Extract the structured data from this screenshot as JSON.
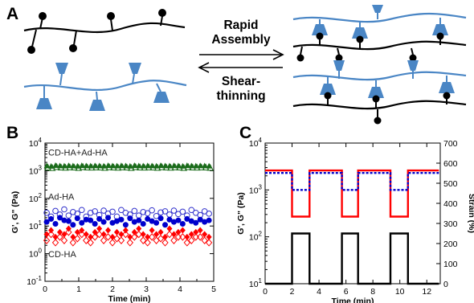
{
  "panel_a": {
    "letter": "A",
    "forward_label_line1": "Rapid",
    "forward_label_line2": "Assembly",
    "reverse_label_line1": "Shear-",
    "reverse_label_line2": "thinning",
    "colors": {
      "black_polymer": "#000000",
      "blue_polymer": "#4a86c5",
      "guest_group": "#000000",
      "host_group": "#4a86c5"
    }
  },
  "panel_b": {
    "letter": "B",
    "series_labels": [
      "CD-HA+Ad-HA",
      "Ad-HA",
      "CD-HA"
    ]
  },
  "panel_c": {
    "letter": "C"
  },
  "chart_data": [
    {
      "type": "scatter",
      "panel": "B",
      "xlabel": "Time (min)",
      "ylabel": "G', G\" (Pa)",
      "xlim": [
        0,
        5
      ],
      "ylim": [
        0.1,
        10000
      ],
      "yscale": "log",
      "x_ticks": [
        "0",
        "1",
        "2",
        "3",
        "4",
        "5"
      ],
      "y_ticks": [
        "10^-1",
        "10^0",
        "10^1",
        "10^2",
        "10^3",
        "10^4"
      ],
      "x": [
        0.05,
        0.18,
        0.31,
        0.44,
        0.57,
        0.7,
        0.83,
        0.96,
        1.09,
        1.22,
        1.35,
        1.48,
        1.61,
        1.74,
        1.87,
        2.0,
        2.13,
        2.26,
        2.39,
        2.52,
        2.65,
        2.78,
        2.91,
        3.04,
        3.17,
        3.3,
        3.43,
        3.56,
        3.69,
        3.82,
        3.95,
        4.08,
        4.21,
        4.34,
        4.47,
        4.6,
        4.73,
        4.86
      ],
      "series": [
        {
          "name": "CD-HA+Ad-HA",
          "role": "G' (filled)",
          "color": "#1a6b1a",
          "marker": "triangle-filled",
          "values": [
            1500,
            1450,
            1550,
            1500,
            1480,
            1520,
            1500,
            1460,
            1540,
            1500,
            1490,
            1510,
            1500,
            1470,
            1530,
            1500,
            1480,
            1520,
            1500,
            1460,
            1540,
            1500,
            1490,
            1510,
            1500,
            1470,
            1530,
            1500,
            1480,
            1520,
            1500,
            1460,
            1540,
            1500,
            1490,
            1510,
            1500,
            1470
          ]
        },
        {
          "name": "CD-HA+Ad-HA",
          "role": "G\" (open)",
          "color": "#1a6b1a",
          "marker": "triangle-open",
          "values": [
            1300,
            1250,
            1350,
            1300,
            1280,
            1320,
            1300,
            1260,
            1340,
            1300,
            1290,
            1310,
            1300,
            1270,
            1330,
            1300,
            1280,
            1320,
            1300,
            1260,
            1340,
            1300,
            1290,
            1310,
            1300,
            1270,
            1330,
            1300,
            1280,
            1320,
            1300,
            1260,
            1340,
            1300,
            1290,
            1310,
            1300,
            1270
          ]
        },
        {
          "name": "Ad-HA",
          "role": "G\" (open)",
          "color": "#3333cc",
          "marker": "circle-open",
          "values": [
            30,
            22,
            35,
            26,
            40,
            24,
            32,
            28,
            38,
            22,
            30,
            34,
            25,
            36,
            28,
            33,
            22,
            38,
            30,
            26,
            35,
            24,
            32,
            29,
            37,
            23,
            31,
            34,
            26,
            36,
            27,
            33,
            24,
            38,
            30,
            25,
            34,
            28
          ]
        },
        {
          "name": "Ad-HA",
          "role": "G' (filled)",
          "color": "#0000cc",
          "marker": "circle-filled",
          "values": [
            14,
            18,
            12,
            20,
            16,
            15,
            11,
            19,
            13,
            17,
            16,
            12,
            18,
            14,
            20,
            13,
            15,
            17,
            11,
            19,
            14,
            16,
            12,
            18,
            15,
            13,
            19,
            11,
            17,
            14,
            16,
            12,
            18,
            15,
            13,
            17,
            14,
            16
          ]
        },
        {
          "name": "CD-HA",
          "role": "G' (filled)",
          "color": "#ff0000",
          "marker": "diamond-filled",
          "values": [
            5,
            7,
            4,
            6,
            5,
            8,
            4,
            6,
            7,
            5,
            4,
            6,
            8,
            5,
            7,
            4,
            6,
            5,
            7,
            4,
            6,
            8,
            5,
            4,
            7,
            5,
            6,
            4,
            8,
            5,
            6,
            7,
            4,
            5,
            6,
            7,
            5,
            4
          ]
        },
        {
          "name": "CD-HA",
          "role": "G\" (open)",
          "color": "#ff0000",
          "marker": "diamond-open",
          "values": [
            3,
            5,
            2.5,
            4,
            3,
            6,
            2.5,
            3.5,
            5,
            3,
            2.5,
            4,
            5,
            3,
            4,
            2.5,
            3.5,
            3,
            5,
            2.5,
            4,
            5,
            3,
            2.5,
            4,
            3,
            3.5,
            2.5,
            5,
            3,
            4,
            4,
            2.5,
            3,
            4,
            4,
            3,
            2.5
          ]
        }
      ]
    },
    {
      "type": "line",
      "panel": "C",
      "xlabel": "Time (min)",
      "ylabel": "G', G\" (Pa)",
      "y2label": "Strain (%)",
      "xlim": [
        0,
        13
      ],
      "ylim": [
        10,
        10000
      ],
      "yscale": "log",
      "y2lim": [
        0,
        700
      ],
      "x_ticks": [
        "0",
        "2",
        "4",
        "6",
        "8",
        "10",
        "12"
      ],
      "y_ticks": [
        "10^1",
        "10^2",
        "10^3",
        "10^4"
      ],
      "y2_ticks": [
        "0",
        "100",
        "200",
        "300",
        "400",
        "500",
        "600",
        "700"
      ],
      "series": [
        {
          "name": "G'",
          "color": "#ff0000",
          "axis": "left",
          "x": [
            0,
            2.0,
            2.0,
            3.3,
            3.3,
            5.7,
            5.7,
            6.9,
            6.9,
            9.3,
            9.3,
            10.6,
            10.6,
            12.9
          ],
          "values": [
            2600,
            2600,
            270,
            270,
            2600,
            2600,
            270,
            270,
            2600,
            2600,
            270,
            270,
            2600,
            2600
          ]
        },
        {
          "name": "G\"",
          "color": "#0000cc",
          "axis": "left",
          "style": "dashed",
          "x": [
            0,
            2.0,
            2.0,
            3.3,
            3.3,
            5.7,
            5.7,
            6.9,
            6.9,
            9.3,
            9.3,
            10.6,
            10.6,
            12.9
          ],
          "values": [
            2300,
            2300,
            1000,
            1000,
            2300,
            2300,
            1000,
            1000,
            2300,
            2300,
            1000,
            1000,
            2300,
            2300
          ]
        },
        {
          "name": "Strain",
          "color": "#000000",
          "axis": "right",
          "x": [
            0,
            2.0,
            2.0,
            3.3,
            3.3,
            5.7,
            5.7,
            6.9,
            6.9,
            9.3,
            9.3,
            10.6,
            10.6,
            12.9
          ],
          "values": [
            0,
            0,
            250,
            250,
            0,
            0,
            250,
            250,
            0,
            0,
            250,
            250,
            0,
            0
          ]
        }
      ]
    }
  ]
}
